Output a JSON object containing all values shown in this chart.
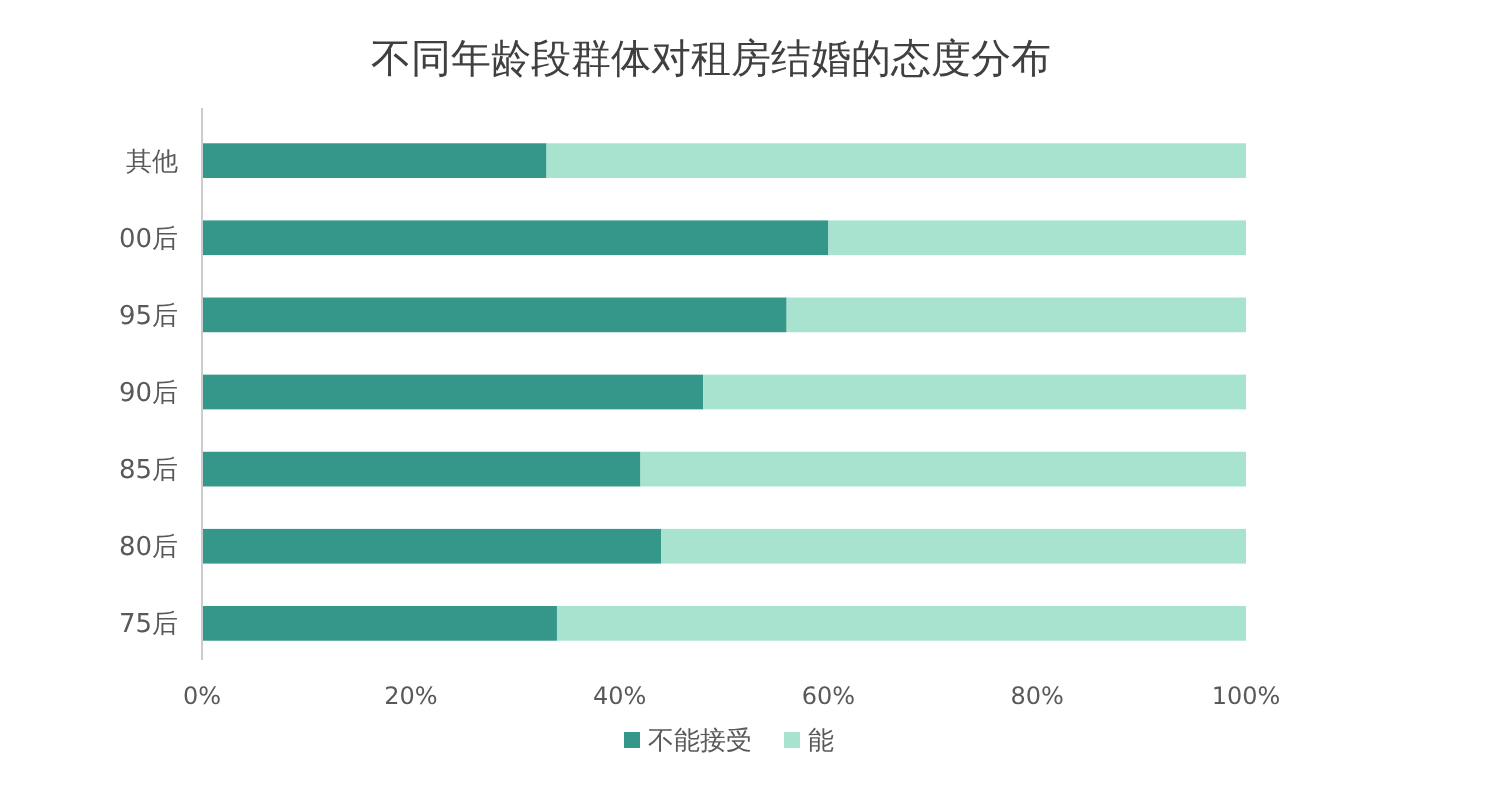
{
  "chart_data": {
    "type": "bar",
    "orientation": "horizontal",
    "stacked": true,
    "title": "不同年龄段群体对租房结婚的态度分布",
    "categories": [
      "其他",
      "00后",
      "95后",
      "90后",
      "85后",
      "80后",
      "75后"
    ],
    "series": [
      {
        "name": "不能接受",
        "color": "#35968a",
        "values": [
          33,
          60,
          56,
          48,
          42,
          44,
          34
        ]
      },
      {
        "name": "能",
        "color": "#a8e3d0",
        "values": [
          67,
          40,
          44,
          52,
          58,
          56,
          66
        ]
      }
    ],
    "xlim": [
      0,
      100
    ],
    "xticks": [
      {
        "value": 0,
        "label": "0%"
      },
      {
        "value": 20,
        "label": "20%"
      },
      {
        "value": 40,
        "label": "40%"
      },
      {
        "value": 60,
        "label": "60%"
      },
      {
        "value": 80,
        "label": "80%"
      },
      {
        "value": 100,
        "label": "100%"
      }
    ],
    "grid": false,
    "legend": "bottom"
  }
}
